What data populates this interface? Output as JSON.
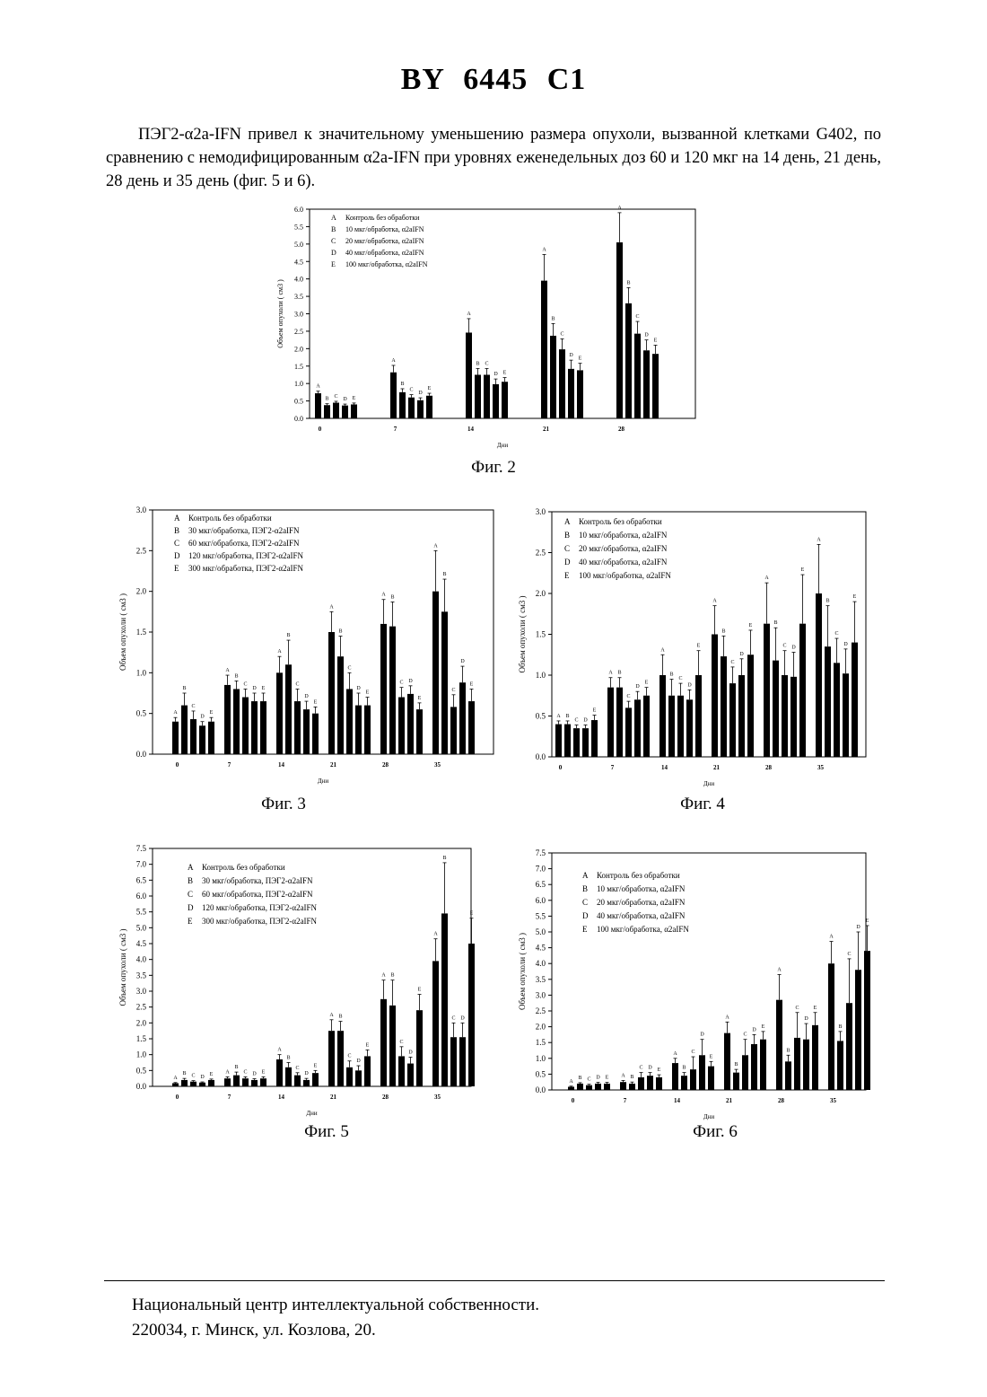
{
  "page": {
    "title": "BY 6445 C1",
    "paragraph": "ПЭГ2-α2a-IFN привел к значительному уменьшению размера опухоли, вызванной клетками G402, по сравнению с немодифицированным α2a-IFN при уровнях еженедельных доз 60 и 120 мкг на 14 день, 21 день, 28 день и 35 день (фиг. 5 и 6).",
    "footer_line1": "Национальный центр интеллектуальной собственности.",
    "footer_line2": "220034, г. Минск, ул. Козлова, 20."
  },
  "chart_data": [
    {
      "id": "fig2",
      "caption": "Фиг. 2",
      "type": "bar",
      "xlabel": "Дни",
      "ylabel": "Объем опухоли ( см3 )",
      "ylim": [
        0,
        6
      ],
      "yticks": [
        "0.0",
        "0.5",
        "1.0",
        "1.5",
        "2.0",
        "2.5",
        "3.0",
        "3.5",
        "4.0",
        "4.5",
        "5.0",
        "5.5",
        "6.0"
      ],
      "categories": [
        "0",
        "7",
        "14",
        "21",
        "28"
      ],
      "legend": [
        {
          "key": "A",
          "text": "Контроль без обработки"
        },
        {
          "key": "B",
          "text": "10 мкг/обработка, α2aIFN"
        },
        {
          "key": "C",
          "text": "20 мкг/обработка, α2aIFN"
        },
        {
          "key": "D",
          "text": "40 мкг/обработка, α2aIFN"
        },
        {
          "key": "E",
          "text": "100 мкг/обработка, α2aIFN"
        }
      ],
      "series": [
        {
          "name": "A",
          "values": [
            0.72,
            1.32,
            2.46,
            3.95,
            5.05
          ],
          "err": [
            0.06,
            0.2,
            0.4,
            0.75,
            0.85
          ]
        },
        {
          "name": "B",
          "values": [
            0.38,
            0.75,
            1.25,
            2.37,
            3.3
          ],
          "err": [
            0.04,
            0.1,
            0.18,
            0.35,
            0.45
          ]
        },
        {
          "name": "C",
          "values": [
            0.45,
            0.6,
            1.25,
            1.98,
            2.43
          ],
          "err": [
            0.04,
            0.08,
            0.18,
            0.3,
            0.35
          ]
        },
        {
          "name": "D",
          "values": [
            0.37,
            0.52,
            0.98,
            1.42,
            1.95
          ],
          "err": [
            0.04,
            0.07,
            0.15,
            0.25,
            0.3
          ]
        },
        {
          "name": "E",
          "values": [
            0.4,
            0.65,
            1.05,
            1.38,
            1.85
          ],
          "err": [
            0.04,
            0.07,
            0.12,
            0.2,
            0.25
          ]
        }
      ]
    },
    {
      "id": "fig3",
      "caption": "Фиг. 3",
      "type": "bar",
      "xlabel": "Дни",
      "ylabel": "Объем опухоли ( см3 )",
      "ylim": [
        0,
        3
      ],
      "yticks": [
        "0.0",
        "0.5",
        "1.0",
        "1.5",
        "2.0",
        "2.5",
        "3.0"
      ],
      "categories": [
        "0",
        "7",
        "14",
        "21",
        "28",
        "35"
      ],
      "legend": [
        {
          "key": "A",
          "text": "Контроль без обработки"
        },
        {
          "key": "B",
          "text": "30 мкг/обработка, ПЭГ2-α2aIFN"
        },
        {
          "key": "C",
          "text": "60 мкг/обработка, ПЭГ2-α2aIFN"
        },
        {
          "key": "D",
          "text": "120 мкг/обработка, ПЭГ2-α2aIFN"
        },
        {
          "key": "E",
          "text": "300 мкг/обработка, ПЭГ2-α2aIFN"
        }
      ],
      "series": [
        {
          "name": "A",
          "values": [
            0.4,
            0.85,
            1.0,
            1.5,
            1.6,
            2.0
          ],
          "err": [
            0.05,
            0.12,
            0.2,
            0.25,
            0.3,
            0.5
          ]
        },
        {
          "name": "B",
          "values": [
            0.6,
            0.8,
            1.1,
            1.2,
            1.57,
            1.75
          ],
          "err": [
            0.15,
            0.1,
            0.3,
            0.25,
            0.3,
            0.4
          ]
        },
        {
          "name": "C",
          "values": [
            0.43,
            0.7,
            0.65,
            0.8,
            0.7,
            0.58
          ],
          "err": [
            0.1,
            0.1,
            0.15,
            0.2,
            0.12,
            0.15
          ]
        },
        {
          "name": "D",
          "values": [
            0.35,
            0.65,
            0.55,
            0.6,
            0.74,
            0.88
          ],
          "err": [
            0.05,
            0.1,
            0.1,
            0.15,
            0.1,
            0.2
          ]
        },
        {
          "name": "E",
          "values": [
            0.4,
            0.65,
            0.5,
            0.6,
            0.55,
            0.65
          ],
          "err": [
            0.05,
            0.1,
            0.08,
            0.1,
            0.08,
            0.15
          ]
        }
      ]
    },
    {
      "id": "fig4",
      "caption": "Фиг. 4",
      "type": "bar",
      "xlabel": "Дни",
      "ylabel": "Объем опухоли ( см3 )",
      "ylim": [
        0,
        3
      ],
      "yticks": [
        "0.0",
        "0.5",
        "1.0",
        "1.5",
        "2.0",
        "2.5",
        "3.0"
      ],
      "categories": [
        "0",
        "7",
        "14",
        "21",
        "28",
        "35"
      ],
      "legend": [
        {
          "key": "A",
          "text": "Контроль без обработки"
        },
        {
          "key": "B",
          "text": "10 мкг/обработка, α2aIFN"
        },
        {
          "key": "C",
          "text": "20 мкг/обработка, α2aIFN"
        },
        {
          "key": "D",
          "text": "40 мкг/обработка, α2aIFN"
        },
        {
          "key": "E",
          "text": "100 мкг/обработка, α2aIFN"
        }
      ],
      "series": [
        {
          "name": "A",
          "values": [
            0.4,
            0.85,
            1.0,
            1.5,
            1.63,
            2.0
          ],
          "err": [
            0.04,
            0.12,
            0.25,
            0.35,
            0.5,
            0.6
          ]
        },
        {
          "name": "B",
          "values": [
            0.4,
            0.85,
            0.75,
            1.23,
            1.18,
            1.35
          ],
          "err": [
            0.04,
            0.12,
            0.2,
            0.25,
            0.4,
            0.5
          ]
        },
        {
          "name": "C",
          "values": [
            0.35,
            0.6,
            0.75,
            0.9,
            1.0,
            1.15
          ],
          "err": [
            0.04,
            0.08,
            0.15,
            0.2,
            0.3,
            0.3
          ]
        },
        {
          "name": "D",
          "values": [
            0.35,
            0.7,
            0.7,
            1.0,
            0.98,
            1.02
          ],
          "err": [
            0.04,
            0.1,
            0.12,
            0.2,
            0.3,
            0.3
          ]
        },
        {
          "name": "E",
          "values": [
            0.45,
            0.75,
            1.0,
            1.25,
            1.63,
            1.4
          ],
          "err": [
            0.06,
            0.1,
            0.3,
            0.3,
            0.6,
            0.5
          ]
        }
      ]
    },
    {
      "id": "fig5",
      "caption": "Фиг. 5",
      "type": "bar",
      "xlabel": "Дни",
      "ylabel": "Объем опухоли ( см3 )",
      "ylim": [
        0,
        7.5
      ],
      "yticks": [
        "0.0",
        "0.5",
        "1.0",
        "1.5",
        "2.0",
        "2.5",
        "3.0",
        "3.5",
        "4.0",
        "4.5",
        "5.0",
        "5.5",
        "6.0",
        "6.5",
        "7.0",
        "7.5"
      ],
      "categories": [
        "0",
        "7",
        "14",
        "21",
        "28",
        "35"
      ],
      "legend": [
        {
          "key": "A",
          "text": "Контроль без обработки"
        },
        {
          "key": "B",
          "text": "30 мкг/обработка, ПЭГ2-α2aIFN"
        },
        {
          "key": "C",
          "text": "60 мкг/обработка, ПЭГ2-α2aIFN"
        },
        {
          "key": "D",
          "text": "120 мкг/обработка, ПЭГ2-α2aIFN"
        },
        {
          "key": "E",
          "text": "300 мкг/обработка, ПЭГ2-α2aIFN"
        }
      ],
      "series": [
        {
          "name": "A",
          "values": [
            0.1,
            0.25,
            0.85,
            1.75,
            2.75,
            3.95
          ],
          "err": [
            0.02,
            0.05,
            0.15,
            0.35,
            0.6,
            0.7
          ]
        },
        {
          "name": "B",
          "values": [
            0.2,
            0.35,
            0.6,
            1.75,
            2.55,
            5.45
          ],
          "err": [
            0.05,
            0.1,
            0.15,
            0.3,
            0.8,
            1.6
          ]
        },
        {
          "name": "C",
          "values": [
            0.15,
            0.25,
            0.35,
            0.6,
            0.95,
            1.55
          ],
          "err": [
            0.03,
            0.05,
            0.08,
            0.2,
            0.3,
            0.45
          ]
        },
        {
          "name": "D",
          "values": [
            0.12,
            0.2,
            0.2,
            0.5,
            0.72,
            1.55
          ],
          "err": [
            0.02,
            0.04,
            0.05,
            0.15,
            0.2,
            0.45
          ]
        },
        {
          "name": "E",
          "values": [
            0.2,
            0.25,
            0.42,
            0.95,
            2.4,
            4.5
          ],
          "err": [
            0.03,
            0.05,
            0.08,
            0.2,
            0.5,
            0.8
          ]
        }
      ]
    },
    {
      "id": "fig6",
      "caption": "Фиг. 6",
      "type": "bar",
      "xlabel": "Дни",
      "ylabel": "Объем опухоли ( см3 )",
      "ylim": [
        0,
        7.5
      ],
      "yticks": [
        "0.0",
        "0.5",
        "1.0",
        "1.5",
        "2.0",
        "2.5",
        "3.0",
        "3.5",
        "4.0",
        "4.5",
        "5.0",
        "5.5",
        "6.0",
        "6.5",
        "7.0",
        "7.5"
      ],
      "categories": [
        "0",
        "7",
        "14",
        "21",
        "28",
        "35"
      ],
      "legend": [
        {
          "key": "A",
          "text": "Контроль без обработки"
        },
        {
          "key": "B",
          "text": "10 мкг/обработка, α2aIFN"
        },
        {
          "key": "C",
          "text": "20 мкг/обработка, α2aIFN"
        },
        {
          "key": "D",
          "text": "40 мкг/обработка, α2aIFN"
        },
        {
          "key": "E",
          "text": "100 мкг/обработка, α2aIFN"
        }
      ],
      "series": [
        {
          "name": "A",
          "values": [
            0.1,
            0.25,
            0.85,
            1.8,
            2.85,
            4.0
          ],
          "err": [
            0.02,
            0.05,
            0.15,
            0.35,
            0.8,
            0.7
          ]
        },
        {
          "name": "B",
          "values": [
            0.2,
            0.2,
            0.45,
            0.55,
            0.9,
            1.55
          ],
          "err": [
            0.03,
            0.05,
            0.1,
            0.1,
            0.2,
            0.3
          ]
        },
        {
          "name": "C",
          "values": [
            0.15,
            0.4,
            0.65,
            1.1,
            1.65,
            2.75
          ],
          "err": [
            0.03,
            0.15,
            0.4,
            0.5,
            0.8,
            1.4
          ]
        },
        {
          "name": "D",
          "values": [
            0.2,
            0.45,
            1.1,
            1.45,
            1.6,
            3.8
          ],
          "err": [
            0.04,
            0.1,
            0.5,
            0.3,
            0.5,
            1.2
          ]
        },
        {
          "name": "E",
          "values": [
            0.2,
            0.4,
            0.75,
            1.6,
            2.05,
            4.4
          ],
          "err": [
            0.04,
            0.08,
            0.15,
            0.25,
            0.4,
            0.8
          ]
        }
      ]
    }
  ]
}
